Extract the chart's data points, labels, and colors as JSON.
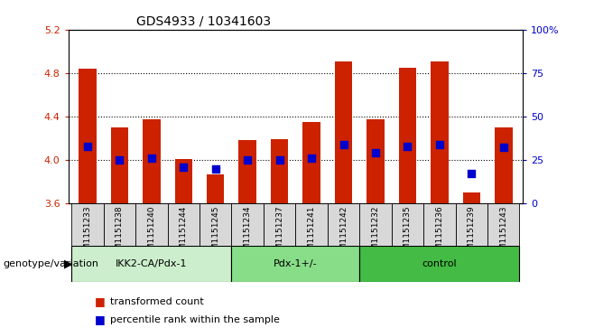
{
  "title": "GDS4933 / 10341603",
  "samples": [
    "GSM1151233",
    "GSM1151238",
    "GSM1151240",
    "GSM1151244",
    "GSM1151245",
    "GSM1151234",
    "GSM1151237",
    "GSM1151241",
    "GSM1151242",
    "GSM1151232",
    "GSM1151235",
    "GSM1151236",
    "GSM1151239",
    "GSM1151243"
  ],
  "bar_values": [
    4.84,
    4.3,
    4.37,
    4.01,
    3.87,
    4.18,
    4.19,
    4.35,
    4.91,
    4.37,
    4.85,
    4.91,
    3.7,
    4.3
  ],
  "percentile_values": [
    33,
    25,
    26,
    21,
    20,
    25,
    25,
    26,
    34,
    29,
    33,
    34,
    17,
    32
  ],
  "groups": [
    {
      "label": "IKK2-CA/Pdx-1",
      "start": 0,
      "end": 5
    },
    {
      "label": "Pdx-1+/-",
      "start": 5,
      "end": 9
    },
    {
      "label": "control",
      "start": 9,
      "end": 14
    }
  ],
  "ylim": [
    3.6,
    5.2
  ],
  "y_ticks": [
    3.6,
    4.0,
    4.4,
    4.8,
    5.2
  ],
  "y2_ticks": [
    0,
    25,
    50,
    75,
    100
  ],
  "bar_color": "#CC2200",
  "percentile_color": "#0000CC",
  "xlabel_area": "genotype/variation",
  "legend_items": [
    "transformed count",
    "percentile rank within the sample"
  ],
  "bar_width": 0.55,
  "y_label_color": "#CC2200",
  "y2_label_color": "#0000CC",
  "group_colors": [
    "#C8F0C8",
    "#88DD88",
    "#44CC44"
  ],
  "tick_bg_color": "#D8D8D8"
}
